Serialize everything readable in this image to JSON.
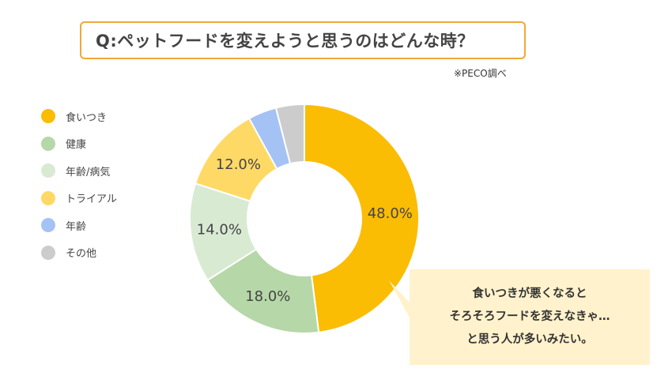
{
  "title": "Q:ペットフードを変えようと思うのはどんな時？",
  "source": "※PECO調べ",
  "callout": {
    "lines": [
      "食いつきが悪くなると",
      "そろそろフードを変えなきゃ…",
      "と思う人が多いみたい。"
    ],
    "background": "#fff2cc"
  },
  "chart_data": {
    "type": "pie",
    "donut": true,
    "start": "top, clockwise",
    "legend_position": "left",
    "series": [
      {
        "name": "食いつき",
        "value": 48.0,
        "label": "48.0%",
        "color": "#fbbc04"
      },
      {
        "name": "健康",
        "value": 18.0,
        "label": "18.0%",
        "color": "#b6d7a8"
      },
      {
        "name": "年齢/病気",
        "value": 14.0,
        "label": "14.0%",
        "color": "#d9ead3"
      },
      {
        "name": "トライアル",
        "value": 12.0,
        "label": "12.0%",
        "color": "#ffd966"
      },
      {
        "name": "年齢",
        "value": 4.0,
        "label": "",
        "color": "#a4c2f4"
      },
      {
        "name": "その他",
        "value": 4.0,
        "label": "",
        "color": "#cccccc"
      }
    ]
  }
}
